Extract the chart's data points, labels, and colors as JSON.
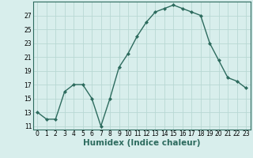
{
  "x": [
    0,
    1,
    2,
    3,
    4,
    5,
    6,
    7,
    8,
    9,
    10,
    11,
    12,
    13,
    14,
    15,
    16,
    17,
    18,
    19,
    20,
    21,
    22,
    23
  ],
  "y": [
    13,
    12,
    12,
    16,
    17,
    17,
    15,
    11,
    15,
    19.5,
    21.5,
    24,
    26,
    27.5,
    28,
    28.5,
    28,
    27.5,
    27,
    23,
    20.5,
    18,
    17.5,
    16.5
  ],
  "line_color": "#2d6b5e",
  "marker": "D",
  "marker_size": 2.0,
  "bg_color": "#d8eeec",
  "grid_color": "#b8d8d4",
  "xlabel": "Humidex (Indice chaleur)",
  "xlabel_fontsize": 7.5,
  "ytick_labels": [
    "11",
    "13",
    "15",
    "17",
    "19",
    "21",
    "23",
    "25",
    "27"
  ],
  "ytick_vals": [
    11,
    13,
    15,
    17,
    19,
    21,
    23,
    25,
    27
  ],
  "xtick_vals": [
    0,
    1,
    2,
    3,
    4,
    5,
    6,
    7,
    8,
    9,
    10,
    11,
    12,
    13,
    14,
    15,
    16,
    17,
    18,
    19,
    20,
    21,
    22,
    23
  ],
  "xlim": [
    -0.5,
    23.5
  ],
  "ylim": [
    10.5,
    29.0
  ],
  "tick_fontsize": 5.5,
  "linewidth": 1.0
}
